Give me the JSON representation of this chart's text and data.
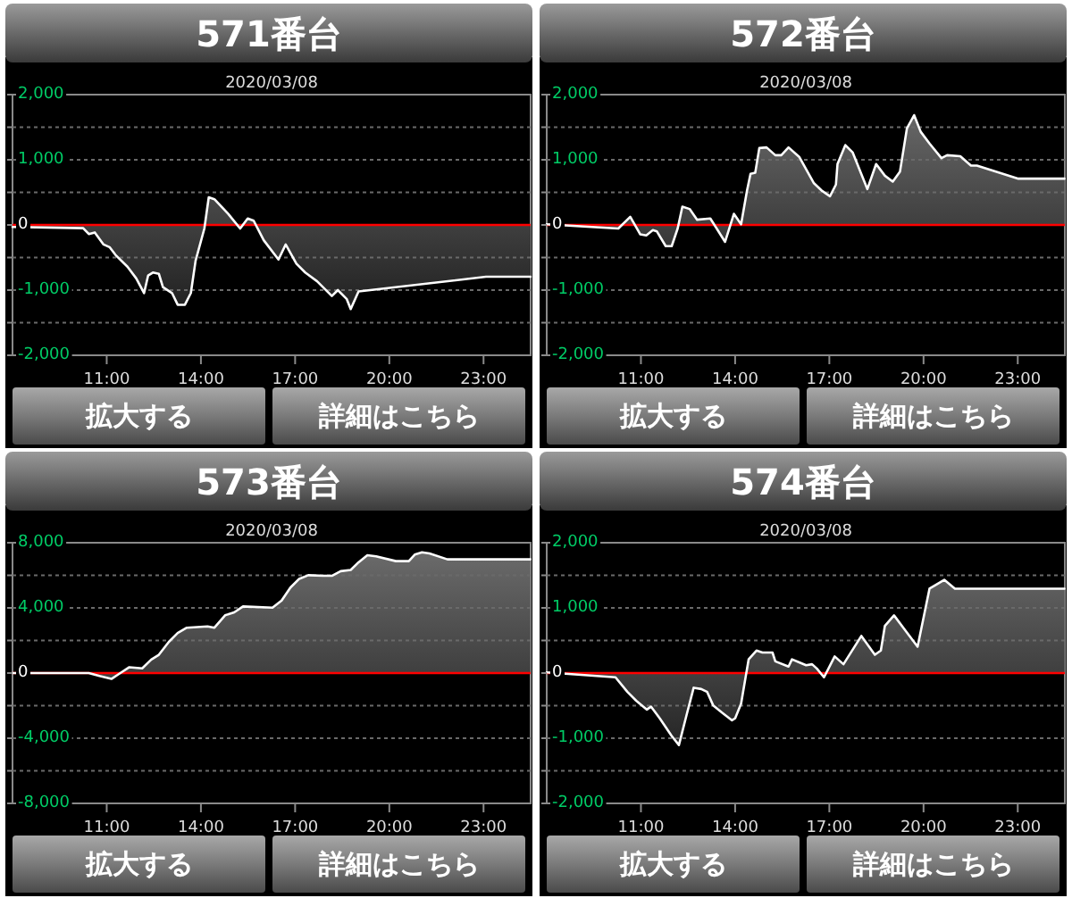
{
  "chart_data": [
    {
      "type": "area",
      "title": "571番台",
      "subtitle": "2020/03/08",
      "annotations": [
        "拡大する",
        "詳細はこちら"
      ],
      "x": [
        8.0,
        10.25,
        10.43,
        10.62,
        10.9,
        11.09,
        11.28,
        11.66,
        11.94,
        12.19,
        12.32,
        12.47,
        12.66,
        12.79,
        13.08,
        13.26,
        13.49,
        13.68,
        13.83,
        14.11,
        14.25,
        14.43,
        14.87,
        15.25,
        15.49,
        15.68,
        16.0,
        16.47,
        16.7,
        17.04,
        17.32,
        17.7,
        18.17,
        18.36,
        18.64,
        18.77,
        19.02,
        23.08,
        24.5
      ],
      "series": [
        {
          "color": "#ffffff",
          "values": [
            -30,
            -50,
            -140,
            -115,
            -300,
            -340,
            -460,
            -640,
            -820,
            -1045,
            -775,
            -730,
            -750,
            -955,
            -1045,
            -1225,
            -1225,
            -1045,
            -550,
            -55,
            425,
            395,
            170,
            -55,
            100,
            65,
            -235,
            -530,
            -300,
            -595,
            -730,
            -865,
            -1090,
            -1000,
            -1135,
            -1290,
            -1020,
            -795,
            -795
          ]
        }
      ],
      "xlim": [
        8,
        24.5
      ],
      "xticks": [
        {
          "value": 11,
          "label": "11:00"
        },
        {
          "value": 14,
          "label": "14:00"
        },
        {
          "value": 17,
          "label": "17:00"
        },
        {
          "value": 20,
          "label": "20:00"
        },
        {
          "value": 23,
          "label": "23:00"
        }
      ],
      "ylim": [
        -2000,
        2000
      ],
      "yticks": [
        {
          "value": -2000,
          "label": "-2,000"
        },
        {
          "value": -1500,
          "label": null
        },
        {
          "value": -1000,
          "label": "-1,000"
        },
        {
          "value": -500,
          "label": null
        },
        {
          "value": 0,
          "label": "0"
        },
        {
          "value": 500,
          "label": null
        },
        {
          "value": 1000,
          "label": "1,000"
        },
        {
          "value": 1500,
          "label": null
        },
        {
          "value": 2000,
          "label": "2,000"
        }
      ],
      "grid": "y",
      "ref_lines": [
        {
          "axis": "y",
          "value": 0,
          "color": "#ff0000"
        }
      ]
    },
    {
      "type": "area",
      "title": "572番台",
      "subtitle": "2020/03/08",
      "annotations": [
        "拡大する",
        "詳細はこちら"
      ],
      "x": [
        8.0,
        10.28,
        10.66,
        10.98,
        11.17,
        11.38,
        11.51,
        11.79,
        11.98,
        12.17,
        12.32,
        12.55,
        12.79,
        13.21,
        13.68,
        13.96,
        14.19,
        14.38,
        14.49,
        14.64,
        14.77,
        15.0,
        15.28,
        15.47,
        15.7,
        16.04,
        16.51,
        16.75,
        17.02,
        17.21,
        17.26,
        17.51,
        17.74,
        18.21,
        18.49,
        18.77,
        19.02,
        19.25,
        19.47,
        19.7,
        19.91,
        20.19,
        20.57,
        20.75,
        21.17,
        21.51,
        21.7,
        23.02,
        24.49
      ],
      "series": [
        {
          "color": "#ffffff",
          "values": [
            10,
            -55,
            125,
            -145,
            -160,
            -80,
            -100,
            -325,
            -325,
            -55,
            280,
            245,
            80,
            100,
            -260,
            170,
            10,
            530,
            785,
            800,
            1180,
            1190,
            1070,
            1070,
            1190,
            1045,
            640,
            530,
            440,
            620,
            935,
            1225,
            1115,
            550,
            935,
            755,
            665,
            820,
            1480,
            1685,
            1430,
            1250,
            1025,
            1070,
            1055,
            910,
            910,
            710,
            710
          ]
        }
      ],
      "xlim": [
        8,
        24.5
      ],
      "xticks": [
        {
          "value": 11,
          "label": "11:00"
        },
        {
          "value": 14,
          "label": "14:00"
        },
        {
          "value": 17,
          "label": "17:00"
        },
        {
          "value": 20,
          "label": "20:00"
        },
        {
          "value": 23,
          "label": "23:00"
        }
      ],
      "ylim": [
        -2000,
        2000
      ],
      "yticks": [
        {
          "value": -2000,
          "label": "-2,000"
        },
        {
          "value": -1500,
          "label": null
        },
        {
          "value": -1000,
          "label": "-1,000"
        },
        {
          "value": -500,
          "label": null
        },
        {
          "value": 0,
          "label": "0"
        },
        {
          "value": 500,
          "label": null
        },
        {
          "value": 1000,
          "label": "1,000"
        },
        {
          "value": 1500,
          "label": null
        },
        {
          "value": 2000,
          "label": "2,000"
        }
      ],
      "grid": "y",
      "ref_lines": [
        {
          "axis": "y",
          "value": 0,
          "color": "#ff0000"
        }
      ]
    },
    {
      "type": "area",
      "title": "573番台",
      "subtitle": "2020/03/08",
      "annotations": [
        "拡大する",
        "詳細はこちら"
      ],
      "x": [
        8.0,
        10.43,
        10.77,
        11.15,
        11.38,
        11.72,
        12.13,
        12.42,
        12.66,
        12.98,
        13.26,
        13.55,
        14.21,
        14.43,
        14.77,
        15.06,
        15.34,
        16.28,
        16.57,
        16.85,
        17.13,
        17.42,
        17.89,
        18.17,
        18.45,
        18.77,
        19.02,
        19.3,
        19.58,
        20.21,
        20.62,
        20.81,
        21.04,
        21.28,
        21.85,
        24.49
      ],
      "series": [
        {
          "color": "#ffffff",
          "values": [
            0,
            0,
            -180,
            -360,
            -70,
            360,
            290,
            830,
            1120,
            1920,
            2460,
            2785,
            2860,
            2785,
            3545,
            3725,
            4090,
            4015,
            4450,
            5245,
            5785,
            6005,
            5970,
            5970,
            6255,
            6330,
            6800,
            7235,
            7160,
            6870,
            6870,
            7270,
            7415,
            7340,
            6980,
            6980
          ]
        }
      ],
      "xlim": [
        8,
        24.5
      ],
      "xticks": [
        {
          "value": 11,
          "label": "11:00"
        },
        {
          "value": 14,
          "label": "14:00"
        },
        {
          "value": 17,
          "label": "17:00"
        },
        {
          "value": 20,
          "label": "20:00"
        },
        {
          "value": 23,
          "label": "23:00"
        }
      ],
      "ylim": [
        -8000,
        8000
      ],
      "yticks": [
        {
          "value": -8000,
          "label": "-8,000"
        },
        {
          "value": -6000,
          "label": null
        },
        {
          "value": -4000,
          "label": "-4,000"
        },
        {
          "value": -2000,
          "label": null
        },
        {
          "value": 0,
          "label": "0"
        },
        {
          "value": 2000,
          "label": null
        },
        {
          "value": 4000,
          "label": "4,000"
        },
        {
          "value": 6000,
          "label": null
        },
        {
          "value": 8000,
          "label": "8,000"
        }
      ],
      "grid": "y",
      "ref_lines": [
        {
          "axis": "y",
          "value": 0,
          "color": "#ff0000"
        }
      ]
    },
    {
      "type": "area",
      "title": "574番台",
      "subtitle": "2020/03/08",
      "annotations": [
        "拡大する",
        "詳細はこちら"
      ],
      "x": [
        8.0,
        10.19,
        10.57,
        10.85,
        11.19,
        11.32,
        11.6,
        11.98,
        12.21,
        12.45,
        12.68,
        12.92,
        13.11,
        13.3,
        13.58,
        13.9,
        14.0,
        14.19,
        14.43,
        14.68,
        14.87,
        15.19,
        15.28,
        15.7,
        15.81,
        16.04,
        16.26,
        16.45,
        16.6,
        16.83,
        17.17,
        17.45,
        18.02,
        18.45,
        18.64,
        18.77,
        19.06,
        19.34,
        19.81,
        20.19,
        20.66,
        21.0,
        24.49
      ],
      "series": [
        {
          "color": "#ffffff",
          "values": [
            10,
            -65,
            -290,
            -425,
            -560,
            -515,
            -695,
            -965,
            -1105,
            -650,
            -225,
            -245,
            -290,
            -495,
            -605,
            -725,
            -695,
            -470,
            210,
            345,
            315,
            315,
            180,
            100,
            210,
            165,
            120,
            135,
            70,
            -65,
            255,
            135,
            570,
            280,
            345,
            725,
            885,
            705,
            405,
            1295,
            1430,
            1295,
            1295
          ]
        }
      ],
      "xlim": [
        8,
        24.5
      ],
      "xticks": [
        {
          "value": 11,
          "label": "11:00"
        },
        {
          "value": 14,
          "label": "14:00"
        },
        {
          "value": 17,
          "label": "17:00"
        },
        {
          "value": 20,
          "label": "20:00"
        },
        {
          "value": 23,
          "label": "23:00"
        }
      ],
      "ylim": [
        -2000,
        2000
      ],
      "yticks": [
        {
          "value": -2000,
          "label": "-2,000"
        },
        {
          "value": -1500,
          "label": null
        },
        {
          "value": -1000,
          "label": "-1,000"
        },
        {
          "value": -500,
          "label": null
        },
        {
          "value": 0,
          "label": "0"
        },
        {
          "value": 500,
          "label": null
        },
        {
          "value": 1000,
          "label": "1,000"
        },
        {
          "value": 1500,
          "label": null
        },
        {
          "value": 2000,
          "label": "2,000"
        }
      ],
      "grid": "y",
      "ref_lines": [
        {
          "axis": "y",
          "value": 0,
          "color": "#ff0000"
        }
      ]
    }
  ]
}
